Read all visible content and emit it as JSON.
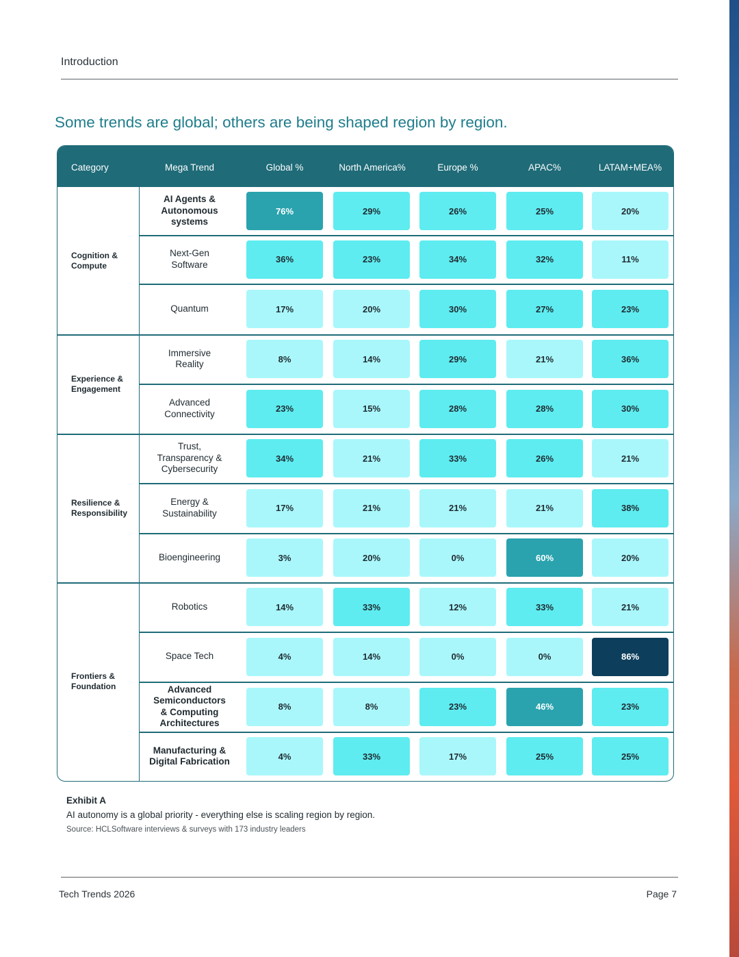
{
  "page": {
    "section": "Introduction",
    "headline": "Some trends are global; others are being shaped region by region.",
    "footer_title": "Tech Trends 2026",
    "page_number": "Page 7"
  },
  "table": {
    "headers": {
      "category": "Category",
      "trend": "Mega Trend",
      "cols": [
        "Global %",
        "North America%",
        "Europe %",
        "APAC%",
        "LATAM+MEA%"
      ]
    },
    "groups": [
      {
        "label": "Cognition & Compute",
        "rows": [
          {
            "trend": "AI Agents &\nAutonomous\nsystems",
            "bold": true,
            "values": [
              "76%",
              "29%",
              "26%",
              "25%",
              "20%"
            ]
          },
          {
            "trend": "Next-Gen\nSoftware",
            "bold": false,
            "values": [
              "36%",
              "23%",
              "34%",
              "32%",
              "11%"
            ]
          },
          {
            "trend": "Quantum",
            "bold": false,
            "values": [
              "17%",
              "20%",
              "30%",
              "27%",
              "23%"
            ]
          }
        ]
      },
      {
        "label": "Experience & Engagement",
        "rows": [
          {
            "trend": "Immersive\nReality",
            "bold": false,
            "values": [
              "8%",
              "14%",
              "29%",
              "21%",
              "36%"
            ]
          },
          {
            "trend": "Advanced\nConnectivity",
            "bold": false,
            "values": [
              "23%",
              "15%",
              "28%",
              "28%",
              "30%"
            ]
          }
        ]
      },
      {
        "label": "Resilience & Responsibility",
        "rows": [
          {
            "trend": "Trust,\nTransparency &\nCybersecurity",
            "bold": false,
            "values": [
              "34%",
              "21%",
              "33%",
              "26%",
              "21%"
            ]
          },
          {
            "trend": "Energy &\nSustainability",
            "bold": false,
            "values": [
              "17%",
              "21%",
              "21%",
              "21%",
              "38%"
            ]
          },
          {
            "trend": "Bioengineering",
            "bold": false,
            "values": [
              "3%",
              "20%",
              "0%",
              "60%",
              "20%"
            ]
          }
        ]
      },
      {
        "label": "Frontiers & Foundation",
        "rows": [
          {
            "trend": "Robotics",
            "bold": false,
            "values": [
              "14%",
              "33%",
              "12%",
              "33%",
              "21%"
            ]
          },
          {
            "trend": "Space Tech",
            "bold": false,
            "values": [
              "4%",
              "14%",
              "0%",
              "0%",
              "86%"
            ]
          },
          {
            "trend": "Advanced\nSemiconductors\n& Computing\nArchitectures",
            "bold": true,
            "values": [
              "8%",
              "8%",
              "23%",
              "46%",
              "23%"
            ]
          },
          {
            "trend": "Manufacturing &\nDigital Fabrication",
            "bold": true,
            "values": [
              "4%",
              "33%",
              "17%",
              "25%",
              "25%"
            ]
          }
        ]
      }
    ]
  },
  "exhibit": {
    "title": "Exhibit A",
    "caption": "AI autonomy is a global priority - everything else is scaling region by region.",
    "source": "Source: HCLSoftware interviews & surveys with 173 industry leaders"
  },
  "colors": {
    "header_bg": "#1f6b78",
    "headline": "#1f7d8c",
    "heat_low": "#a9f7fb",
    "heat_mid": "#5eecf0",
    "heat_high": "#2aa3ae",
    "heat_max": "#0d3f5c"
  }
}
